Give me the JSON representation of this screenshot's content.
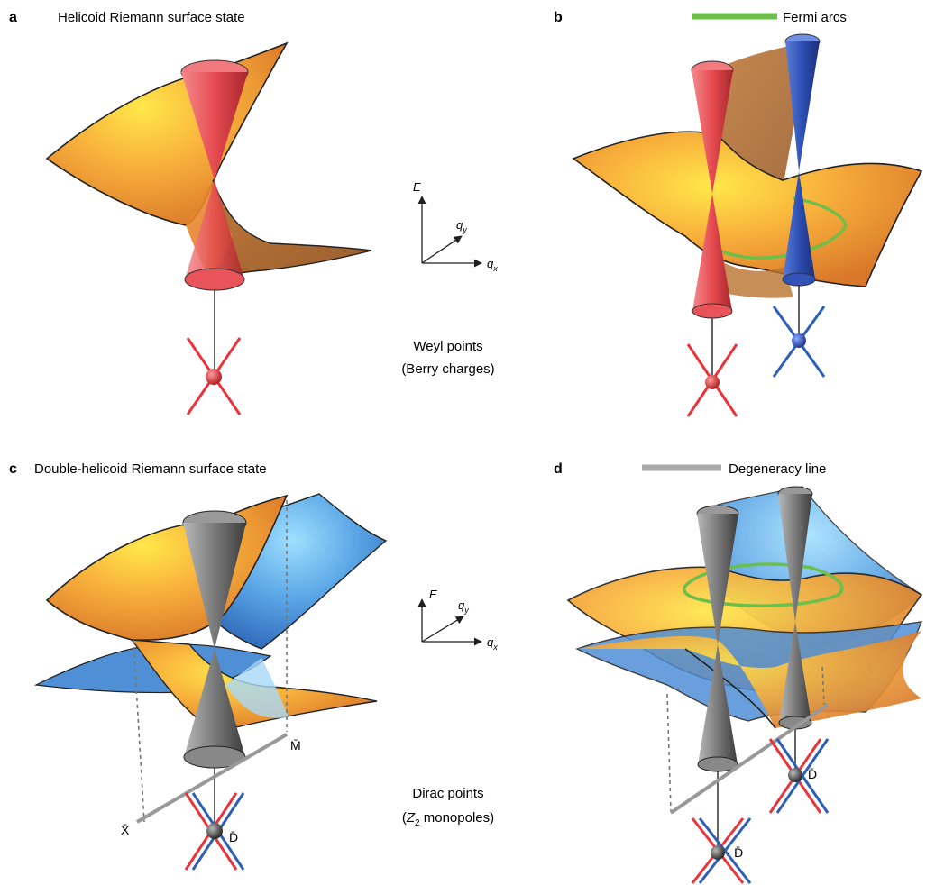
{
  "panels": {
    "a": {
      "letter": "a",
      "title": "Helicoid Riemann surface state"
    },
    "b": {
      "letter": "b",
      "legend": "Fermi arcs"
    },
    "c": {
      "letter": "c",
      "title": "Double-helicoid Riemann surface state"
    },
    "d": {
      "letter": "d",
      "legend": "Degeneracy line"
    }
  },
  "axes": {
    "e_label": "E",
    "qy_main": "q",
    "qy_sub": "y",
    "qx_main": "q",
    "qx_sub": "x"
  },
  "captions": {
    "weyl_line1": "Weyl points",
    "weyl_line2": "(Berry charges)",
    "dirac_line1": "Dirac points",
    "dirac_z": "Z",
    "dirac_z_sub": "2",
    "dirac_rest": "monopoles)"
  },
  "labels": {
    "m_bar": "M̄",
    "x_bar": "X̄",
    "d_bar": "D̄",
    "d_bar_right": "D̄",
    "minus_d_bar": "−D̄"
  },
  "colors": {
    "orange_surface": "#f4a23a",
    "blue_surface": "#4f8fd6",
    "red_cone": "#e0474c",
    "blue_cone": "#2b4fb5",
    "grey_cone": "#777777",
    "fermi_arc": "#6cc04a",
    "degeneracy_line": "#aaaaaa",
    "red_line": "#e8343a",
    "blue_line": "#2d5fb8"
  }
}
